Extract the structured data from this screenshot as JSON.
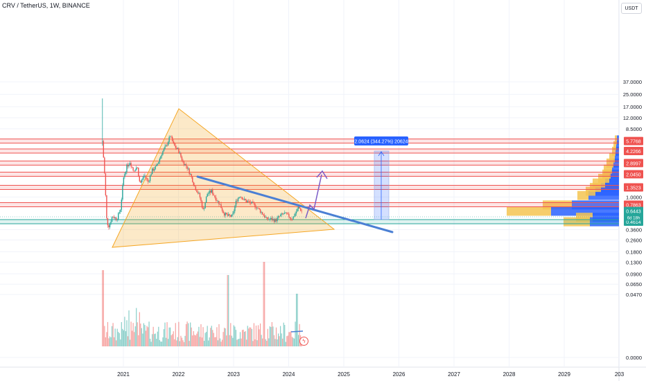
{
  "header": {
    "symbol_line": "CRV / TetherUS, 1W, BINANCE"
  },
  "currency_button": "USDT",
  "chart_data": {
    "type": "candlestick",
    "title": "CRV / TetherUS, 1W, BINANCE",
    "y_scale": "log",
    "y_axis_ticks": [
      "37.0000",
      "25.0000",
      "17.0000",
      "12.0000",
      "8.5000",
      "1.0000",
      "0.3600",
      "0.2600",
      "0.1800",
      "0.1300",
      "0.0900",
      "0.0650",
      "0.0470",
      "0.0000"
    ],
    "x_axis_ticks": [
      "2021",
      "2022",
      "2023",
      "2024",
      "2025",
      "2026",
      "2027",
      "2028",
      "2029",
      "203"
    ],
    "price_levels": [
      {
        "value": "5.7768",
        "color": "#ef5350"
      },
      {
        "value": "4.2266",
        "color": "#ef5350"
      },
      {
        "value": "2.8997",
        "color": "#ef5350"
      },
      {
        "value": "2.0450",
        "color": "#ef5350"
      },
      {
        "value": "1.3523",
        "color": "#ef5350"
      },
      {
        "value": "0.7863",
        "color": "#ef5350"
      },
      {
        "value": "0.4614",
        "color": "#26a69a"
      }
    ],
    "current_price": {
      "value": "0.6443",
      "countdown": "6d 18h",
      "color": "#26a69a"
    },
    "measure_label": "2.0624 (344.27%) 20624",
    "colors": {
      "up": "#26a69a",
      "down": "#ef5350",
      "triangle": "#f5a623",
      "trendline": "#4a7fd4",
      "arrow": "#7b5cc7",
      "measure": "#2962ff",
      "profile_yellow": "#f5c451",
      "profile_blue": "#2962ff"
    }
  }
}
